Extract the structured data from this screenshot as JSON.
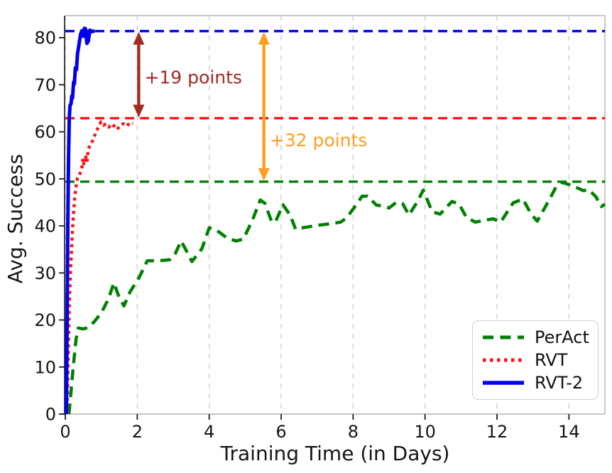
{
  "chart_data": {
    "type": "line",
    "title": "",
    "xlabel": "Training Time (in Days)",
    "ylabel": "Avg. Success",
    "xlim": [
      0,
      15
    ],
    "ylim": [
      0,
      84.7
    ],
    "xticks": [
      0,
      2,
      4,
      6,
      8,
      10,
      12,
      14
    ],
    "yticks": [
      0,
      10,
      20,
      30,
      40,
      50,
      60,
      70,
      80
    ],
    "grid": "vertical dashed gridlines at x ticks",
    "legend_position": "lower right",
    "series": [
      {
        "name": "PerAct",
        "color": "#008000",
        "line_style": "dashed",
        "final_value": 49.4,
        "points": [
          [
            0.1,
            0
          ],
          [
            0.15,
            4
          ],
          [
            0.22,
            10
          ],
          [
            0.3,
            16
          ],
          [
            0.36,
            18.3
          ],
          [
            0.5,
            18.1
          ],
          [
            0.65,
            18.4
          ],
          [
            0.8,
            19.6
          ],
          [
            1.0,
            21.5
          ],
          [
            1.2,
            24.5
          ],
          [
            1.35,
            27.9
          ],
          [
            1.5,
            24.7
          ],
          [
            1.63,
            23.0
          ],
          [
            1.8,
            26.0
          ],
          [
            2.05,
            29.0
          ],
          [
            2.28,
            32.6
          ],
          [
            2.6,
            32.6
          ],
          [
            2.9,
            32.8
          ],
          [
            3.05,
            34.0
          ],
          [
            3.22,
            36.8
          ],
          [
            3.4,
            34.2
          ],
          [
            3.52,
            32.4
          ],
          [
            3.8,
            35.2
          ],
          [
            4.0,
            39.6
          ],
          [
            4.2,
            39.1
          ],
          [
            4.5,
            37.4
          ],
          [
            4.75,
            36.8
          ],
          [
            4.95,
            37.2
          ],
          [
            5.2,
            41.2
          ],
          [
            5.42,
            45.5
          ],
          [
            5.55,
            44.8
          ],
          [
            5.74,
            40.8
          ],
          [
            5.85,
            41.0
          ],
          [
            6.05,
            44.5
          ],
          [
            6.25,
            42.3
          ],
          [
            6.4,
            39.3
          ],
          [
            6.6,
            39.6
          ],
          [
            7.0,
            40.1
          ],
          [
            7.4,
            40.5
          ],
          [
            7.65,
            40.8
          ],
          [
            7.82,
            41.7
          ],
          [
            8.05,
            44.1
          ],
          [
            8.25,
            46.3
          ],
          [
            8.4,
            46.3
          ],
          [
            8.65,
            44.4
          ],
          [
            8.85,
            44.2
          ],
          [
            9.0,
            43.8
          ],
          [
            9.2,
            45.0
          ],
          [
            9.38,
            44.7
          ],
          [
            9.55,
            42.3
          ],
          [
            9.8,
            45.3
          ],
          [
            9.95,
            47.6
          ],
          [
            10.2,
            43.0
          ],
          [
            10.42,
            42.5
          ],
          [
            10.75,
            45.2
          ],
          [
            10.95,
            44.6
          ],
          [
            11.15,
            41.8
          ],
          [
            11.4,
            40.8
          ],
          [
            11.65,
            41.2
          ],
          [
            11.9,
            41.5
          ],
          [
            12.1,
            40.8
          ],
          [
            12.45,
            44.9
          ],
          [
            12.72,
            45.7
          ],
          [
            12.95,
            42.5
          ],
          [
            13.12,
            41.0
          ],
          [
            13.45,
            45.5
          ],
          [
            13.65,
            48.4
          ],
          [
            13.8,
            49.3
          ],
          [
            14.0,
            48.8
          ],
          [
            14.2,
            48.2
          ],
          [
            14.4,
            47.5
          ],
          [
            14.55,
            47.7
          ],
          [
            14.75,
            46.2
          ],
          [
            14.9,
            44.1
          ],
          [
            15.0,
            44.6
          ]
        ]
      },
      {
        "name": "RVT",
        "color": "#fa1414",
        "line_style": "dotted",
        "final_value": 62.9,
        "points": [
          [
            0.05,
            0
          ],
          [
            0.07,
            8
          ],
          [
            0.09,
            16
          ],
          [
            0.11,
            23
          ],
          [
            0.14,
            29.5
          ],
          [
            0.17,
            34.5
          ],
          [
            0.2,
            39.3
          ],
          [
            0.23,
            43.0
          ],
          [
            0.26,
            46.0
          ],
          [
            0.3,
            48.5
          ],
          [
            0.34,
            50.2
          ],
          [
            0.38,
            50.6
          ],
          [
            0.42,
            51.4
          ],
          [
            0.46,
            52.4
          ],
          [
            0.49,
            54.3
          ],
          [
            0.52,
            52.9
          ],
          [
            0.56,
            55.0
          ],
          [
            0.6,
            53.6
          ],
          [
            0.64,
            56.2
          ],
          [
            0.68,
            57.1
          ],
          [
            0.73,
            57.6
          ],
          [
            0.79,
            58.7
          ],
          [
            0.86,
            60.0
          ],
          [
            0.93,
            61.2
          ],
          [
            0.99,
            62.1
          ],
          [
            1.06,
            61.4
          ],
          [
            1.13,
            61.7
          ],
          [
            1.21,
            61.0
          ],
          [
            1.28,
            61.7
          ],
          [
            1.36,
            61.2
          ],
          [
            1.44,
            60.5
          ],
          [
            1.53,
            61.5
          ],
          [
            1.62,
            61.7
          ],
          [
            1.71,
            61.2
          ],
          [
            1.8,
            62.0
          ],
          [
            1.88,
            61.8
          ]
        ]
      },
      {
        "name": "RVT-2",
        "color": "#0000ee",
        "line_style": "solid",
        "final_value": 81.4,
        "points": [
          [
            0.03,
            0
          ],
          [
            0.05,
            20
          ],
          [
            0.07,
            40
          ],
          [
            0.09,
            55
          ],
          [
            0.11,
            63
          ],
          [
            0.13,
            65.6
          ],
          [
            0.16,
            66.0
          ],
          [
            0.18,
            67.6
          ],
          [
            0.2,
            67.2
          ],
          [
            0.23,
            70.6
          ],
          [
            0.25,
            70.2
          ],
          [
            0.28,
            73.6
          ],
          [
            0.31,
            73.2
          ],
          [
            0.34,
            76.6
          ],
          [
            0.38,
            78.6
          ],
          [
            0.42,
            80.6
          ],
          [
            0.46,
            81.5
          ],
          [
            0.5,
            80.3
          ],
          [
            0.53,
            82.0
          ],
          [
            0.56,
            81.9
          ],
          [
            0.6,
            78.8
          ],
          [
            0.64,
            79.3
          ],
          [
            0.68,
            81.6
          ],
          [
            0.74,
            81.3
          ],
          [
            0.82,
            81.5
          ]
        ]
      }
    ],
    "reference_lines": [
      {
        "series": "RVT-2",
        "value": 81.4,
        "color": "#0000ee",
        "style": "dashed"
      },
      {
        "series": "RVT",
        "value": 62.9,
        "color": "#fa1414",
        "style": "dashed"
      },
      {
        "series": "PerAct",
        "value": 49.4,
        "color": "#008000",
        "style": "dashed"
      }
    ],
    "annotations": [
      {
        "text": "+19 points",
        "color": "#a22b24",
        "arrow_x": 2.04,
        "from_value": 62.9,
        "to_value": 81.4,
        "text_x": 2.2,
        "text_y": 70.3
      },
      {
        "text": "+32 points",
        "color": "#ff9e20",
        "arrow_x": 5.52,
        "from_value": 49.4,
        "to_value": 81.4,
        "text_x": 5.68,
        "text_y": 56.9
      }
    ]
  }
}
